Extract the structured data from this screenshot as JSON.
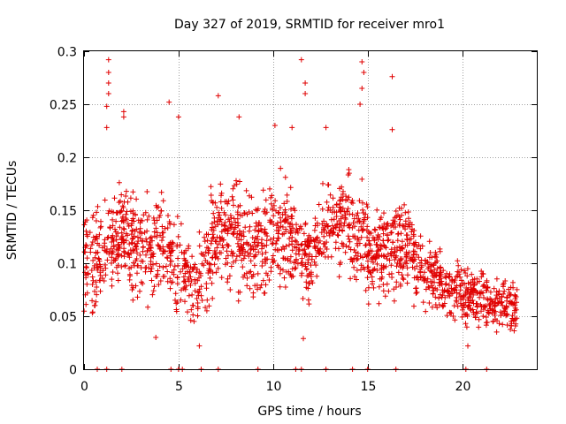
{
  "chart_data": {
    "type": "scatter",
    "title": "Day 327 of 2019, SRMTID for receiver mro1",
    "xlabel": "GPS time / hours",
    "ylabel": "SRMTID / TECUs",
    "xlim": [
      0,
      23.95
    ],
    "ylim": [
      0,
      0.3
    ],
    "x_ticks": [
      0,
      5,
      10,
      15,
      20
    ],
    "y_ticks": [
      0,
      0.05,
      0.1,
      0.15,
      0.2,
      0.25,
      0.3
    ],
    "x_tick_labels": [
      "0",
      "5",
      "10",
      "15",
      "20"
    ],
    "y_tick_labels": [
      "0",
      "0.05",
      "0.1",
      "0.15",
      "0.2",
      "0.25",
      "0.3"
    ],
    "grid": true,
    "marker": "+",
    "color": "#e00000",
    "series": [
      {
        "name": "SRMTID",
        "description": "Dense scatter; envelope of typical values (mean, spread) per time bin",
        "x": [
          0,
          1,
          2,
          3,
          4,
          5,
          6,
          7,
          8,
          9,
          10,
          11,
          12,
          13,
          14,
          15,
          16,
          17,
          18,
          19,
          20,
          21,
          22,
          22.8
        ],
        "y_center": [
          0.1,
          0.11,
          0.13,
          0.11,
          0.12,
          0.1,
          0.08,
          0.13,
          0.13,
          0.11,
          0.13,
          0.12,
          0.1,
          0.14,
          0.14,
          0.11,
          0.11,
          0.12,
          0.09,
          0.08,
          0.07,
          0.07,
          0.06,
          0.06
        ],
        "y_spread": [
          0.04,
          0.04,
          0.04,
          0.04,
          0.04,
          0.04,
          0.035,
          0.04,
          0.04,
          0.04,
          0.045,
          0.04,
          0.035,
          0.035,
          0.04,
          0.04,
          0.035,
          0.035,
          0.025,
          0.025,
          0.025,
          0.025,
          0.02,
          0.02
        ]
      }
    ],
    "outliers": [
      {
        "x": 1.3,
        "y": 0.292
      },
      {
        "x": 1.3,
        "y": 0.28
      },
      {
        "x": 1.3,
        "y": 0.27
      },
      {
        "x": 1.3,
        "y": 0.26
      },
      {
        "x": 1.2,
        "y": 0.248
      },
      {
        "x": 1.2,
        "y": 0.228
      },
      {
        "x": 2.1,
        "y": 0.243
      },
      {
        "x": 2.1,
        "y": 0.238
      },
      {
        "x": 4.5,
        "y": 0.252
      },
      {
        "x": 5.0,
        "y": 0.238
      },
      {
        "x": 7.1,
        "y": 0.258
      },
      {
        "x": 8.2,
        "y": 0.238
      },
      {
        "x": 10.1,
        "y": 0.23
      },
      {
        "x": 11.0,
        "y": 0.228
      },
      {
        "x": 11.5,
        "y": 0.292
      },
      {
        "x": 11.7,
        "y": 0.27
      },
      {
        "x": 11.7,
        "y": 0.26
      },
      {
        "x": 12.8,
        "y": 0.228
      },
      {
        "x": 14.7,
        "y": 0.29
      },
      {
        "x": 14.8,
        "y": 0.28
      },
      {
        "x": 14.7,
        "y": 0.265
      },
      {
        "x": 14.6,
        "y": 0.25
      },
      {
        "x": 16.3,
        "y": 0.276
      },
      {
        "x": 16.3,
        "y": 0.226
      },
      {
        "x": 11.6,
        "y": 0.029
      },
      {
        "x": 3.8,
        "y": 0.03
      },
      {
        "x": 6.1,
        "y": 0.022
      },
      {
        "x": 20.3,
        "y": 0.022
      }
    ],
    "zero_x": [
      0.7,
      1.2,
      2.0,
      4.6,
      5.0,
      5.2,
      6.2,
      7.1,
      9.2,
      11.2,
      11.5,
      12.8,
      14.2,
      15.0,
      16.5,
      20.2,
      21.3
    ]
  }
}
